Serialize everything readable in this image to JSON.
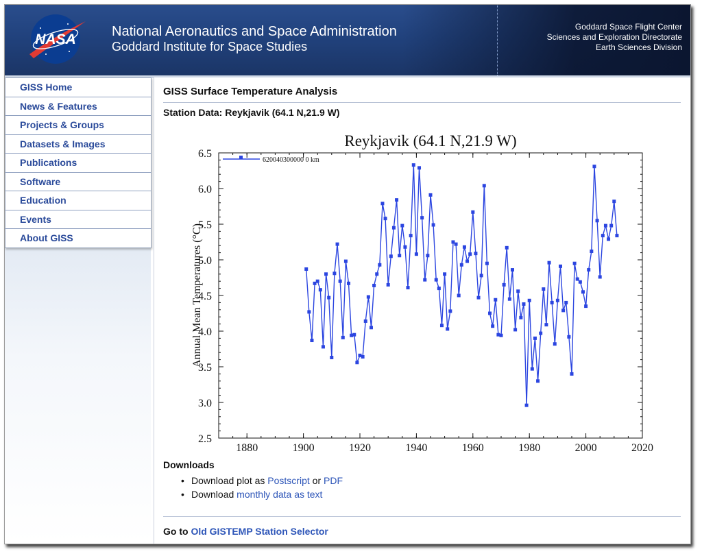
{
  "header": {
    "logo_text": "NASA",
    "org_line1": "National Aeronautics and Space Administration",
    "org_line2": "Goddard Institute for Space Studies",
    "right_lines": [
      "Goddard Space Flight Center",
      "Sciences and Exploration Directorate",
      "Earth Sciences Division"
    ]
  },
  "sidebar": {
    "items": [
      {
        "label": "GISS Home"
      },
      {
        "label": "News & Features"
      },
      {
        "label": "Projects & Groups"
      },
      {
        "label": "Datasets & Images"
      },
      {
        "label": "Publications"
      },
      {
        "label": "Software"
      },
      {
        "label": "Education"
      },
      {
        "label": "Events"
      },
      {
        "label": "About GISS"
      }
    ]
  },
  "main": {
    "section_title": "GISS Surface Temperature Analysis",
    "station_title": "Station Data: Reykjavik (64.1 N,21.9 W)",
    "downloads_heading": "Downloads",
    "download_plot_prefix": "Download plot as",
    "postscript_link": "Postscript",
    "or_text": "or",
    "pdf_link": "PDF",
    "download_data_prefix": "Download",
    "monthly_data_link": "monthly data as text",
    "goto_prefix": "Go to",
    "old_selector_link": "Old GISTEMP Station Selector"
  },
  "colors": {
    "series": "#2b45e0",
    "nav_link": "#2a4a9a",
    "link": "#2d55b8",
    "banner": "#21427d"
  },
  "chart_data": {
    "type": "line",
    "title": "Reykjavik (64.1 N,21.9 W)",
    "xlabel": "",
    "ylabel": "Annual Mean Temperatures (°C)",
    "xlim": [
      1870,
      2020
    ],
    "ylim": [
      2.5,
      6.5
    ],
    "xticks": [
      1880,
      1900,
      1920,
      1940,
      1960,
      1980,
      2000,
      2020
    ],
    "yticks": [
      2.5,
      3.0,
      3.5,
      4.0,
      4.5,
      5.0,
      5.5,
      6.0,
      6.5
    ],
    "legend": "top-left",
    "grid": false,
    "series": [
      {
        "name": "620040300000 0 km",
        "x": [
          1901,
          1902,
          1903,
          1904,
          1905,
          1906,
          1907,
          1908,
          1909,
          1910,
          1911,
          1912,
          1913,
          1914,
          1915,
          1916,
          1917,
          1918,
          1919,
          1920,
          1921,
          1922,
          1923,
          1924,
          1925,
          1926,
          1927,
          1928,
          1929,
          1930,
          1931,
          1932,
          1933,
          1934,
          1935,
          1936,
          1937,
          1938,
          1939,
          1940,
          1941,
          1942,
          1943,
          1944,
          1945,
          1946,
          1947,
          1948,
          1949,
          1950,
          1951,
          1952,
          1953,
          1954,
          1955,
          1956,
          1957,
          1958,
          1959,
          1960,
          1961,
          1962,
          1963,
          1964,
          1965,
          1966,
          1967,
          1968,
          1969,
          1970,
          1971,
          1972,
          1973,
          1974,
          1975,
          1976,
          1977,
          1978,
          1979,
          1980,
          1981,
          1982,
          1983,
          1984,
          1985,
          1986,
          1987,
          1988,
          1989,
          1990,
          1991,
          1992,
          1993,
          1994,
          1995,
          1996,
          1997,
          1998,
          1999,
          2000,
          2001,
          2002,
          2003,
          2004,
          2005,
          2006,
          2007,
          2008,
          2009,
          2010,
          2011
        ],
        "y": [
          4.87,
          4.27,
          3.87,
          4.67,
          4.7,
          4.58,
          3.78,
          4.8,
          4.47,
          3.63,
          4.81,
          5.22,
          4.7,
          3.91,
          4.98,
          4.67,
          3.94,
          3.95,
          3.56,
          3.66,
          3.64,
          4.14,
          4.48,
          4.05,
          4.64,
          4.8,
          4.93,
          5.79,
          5.58,
          4.65,
          5.05,
          5.45,
          5.84,
          5.06,
          5.48,
          5.18,
          4.61,
          5.34,
          6.33,
          5.08,
          6.29,
          5.59,
          4.72,
          5.06,
          5.91,
          5.49,
          4.72,
          4.6,
          4.08,
          4.8,
          4.03,
          4.28,
          5.25,
          5.22,
          4.5,
          4.93,
          5.18,
          4.98,
          5.08,
          5.67,
          5.09,
          4.47,
          4.78,
          6.04,
          4.95,
          4.25,
          4.07,
          4.44,
          3.95,
          3.94,
          4.65,
          5.17,
          4.45,
          4.86,
          4.02,
          4.56,
          4.19,
          4.38,
          2.96,
          4.43,
          3.47,
          3.9,
          3.3,
          3.97,
          4.59,
          4.09,
          4.96,
          4.4,
          3.82,
          4.43,
          4.91,
          4.29,
          4.4,
          3.92,
          3.4,
          4.95,
          4.73,
          4.69,
          4.55,
          4.35,
          4.86,
          5.12,
          6.31,
          5.55,
          4.76,
          5.34,
          5.48,
          5.29,
          5.48,
          5.82,
          5.34
        ]
      }
    ]
  }
}
